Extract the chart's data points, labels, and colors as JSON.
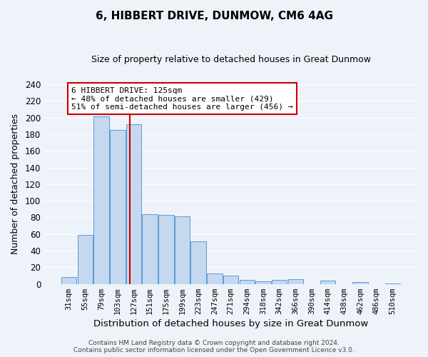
{
  "title": "6, HIBBERT DRIVE, DUNMOW, CM6 4AG",
  "subtitle": "Size of property relative to detached houses in Great Dunmow",
  "xlabel": "Distribution of detached houses by size in Great Dunmow",
  "ylabel": "Number of detached properties",
  "bar_labels": [
    "31sqm",
    "55sqm",
    "79sqm",
    "103sqm",
    "127sqm",
    "151sqm",
    "175sqm",
    "199sqm",
    "223sqm",
    "247sqm",
    "271sqm",
    "294sqm",
    "318sqm",
    "342sqm",
    "366sqm",
    "390sqm",
    "414sqm",
    "438sqm",
    "462sqm",
    "486sqm",
    "510sqm"
  ],
  "bar_values": [
    8,
    59,
    201,
    185,
    192,
    84,
    83,
    81,
    51,
    13,
    10,
    5,
    3,
    5,
    6,
    0,
    4,
    0,
    2,
    0,
    1
  ],
  "bar_color": "#c5d8f0",
  "bar_edge_color": "#5b9bd5",
  "background_color": "#eef3fa",
  "grid_color": "#ffffff",
  "vline_color": "#cc0000",
  "annotation_line1": "6 HIBBERT DRIVE: 125sqm",
  "annotation_line2": "← 48% of detached houses are smaller (429)",
  "annotation_line3": "51% of semi-detached houses are larger (456) →",
  "annotation_box_color": "#ffffff",
  "annotation_box_edge": "#cc0000",
  "ylim": [
    0,
    240
  ],
  "yticks": [
    0,
    20,
    40,
    60,
    80,
    100,
    120,
    140,
    160,
    180,
    200,
    220,
    240
  ],
  "footer1": "Contains HM Land Registry data © Crown copyright and database right 2024.",
  "footer2": "Contains public sector information licensed under the Open Government Licence v3.0."
}
